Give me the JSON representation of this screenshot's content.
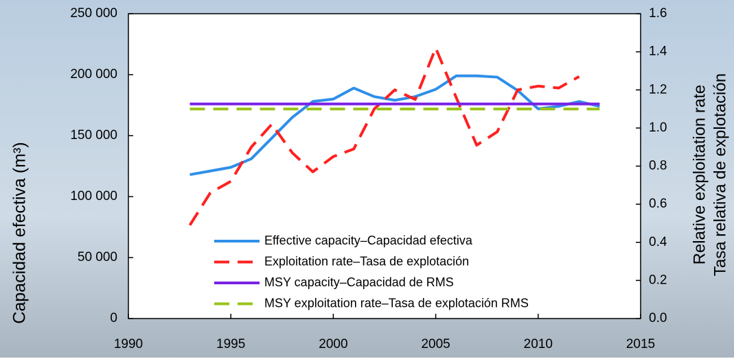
{
  "chart_data": {
    "type": "line",
    "y_label": "Capacidad efectiva (m³)",
    "y2_label": [
      "Relative exploitation rate",
      "Tasa relativa de explotación"
    ],
    "xlim": [
      1990,
      2015
    ],
    "xticks": [
      1990,
      1995,
      2000,
      2005,
      2010,
      2015
    ],
    "ylim": [
      0,
      250000
    ],
    "yticks": [
      {
        "value": 0,
        "label": "0"
      },
      {
        "value": 50000,
        "label": "50 000"
      },
      {
        "value": 100000,
        "label": "100 000"
      },
      {
        "value": 150000,
        "label": "150 000"
      },
      {
        "value": 200000,
        "label": "200 000"
      },
      {
        "value": 250000,
        "label": "250 000"
      }
    ],
    "y2lim": [
      0,
      1.6
    ],
    "y2ticks": [
      {
        "value": 0,
        "label": "0.0"
      },
      0.2,
      0.4,
      0.6,
      0.8,
      {
        "value": 1,
        "label": "1.0"
      },
      1.2,
      1.4,
      1.6
    ],
    "series": [
      {
        "name": "Effective capacity–Capacidad efectiva",
        "color": "#2f8fe8",
        "dashed": false,
        "x": [
          1993,
          1994,
          1995,
          1996,
          1997,
          1998,
          1999,
          2000,
          2001,
          2002,
          2003,
          2004,
          2005,
          2006,
          2007,
          2008,
          2009,
          2010,
          2011,
          2012,
          2013
        ],
        "values": [
          118000,
          121000,
          124000,
          131000,
          148000,
          165000,
          178000,
          180000,
          189000,
          182000,
          179000,
          182000,
          188000,
          199000,
          199000,
          198000,
          187000,
          172000,
          174000,
          178000,
          174000
        ]
      },
      {
        "name": "Exploitation rate–Tasa de explotación",
        "color": "#ff2020",
        "dashed": true,
        "axis": "y2",
        "x": [
          1993,
          1994,
          1995,
          1996,
          1997,
          1998,
          1999,
          2000,
          2001,
          2002,
          2003,
          2004,
          2005,
          2006,
          2007,
          2008,
          2009,
          2010,
          2011,
          2012
        ],
        "values": [
          0.49,
          0.66,
          0.72,
          0.9,
          1.02,
          0.87,
          0.77,
          0.85,
          0.89,
          1.1,
          1.2,
          1.15,
          1.42,
          1.16,
          0.91,
          0.98,
          1.2,
          1.22,
          1.21,
          1.27
        ]
      },
      {
        "name": "MSY capacity–Capacidad de RMS",
        "color": "#7a22e6",
        "dashed": false,
        "x": [
          1993,
          2013
        ],
        "values": [
          176000,
          176000
        ]
      },
      {
        "name": "MSY exploitation rate–Tasa de explotación RMS",
        "color": "#99c31a",
        "dashed": true,
        "axis": "y2",
        "x": [
          1993,
          2013
        ],
        "values": [
          1.1,
          1.1
        ]
      }
    ]
  }
}
